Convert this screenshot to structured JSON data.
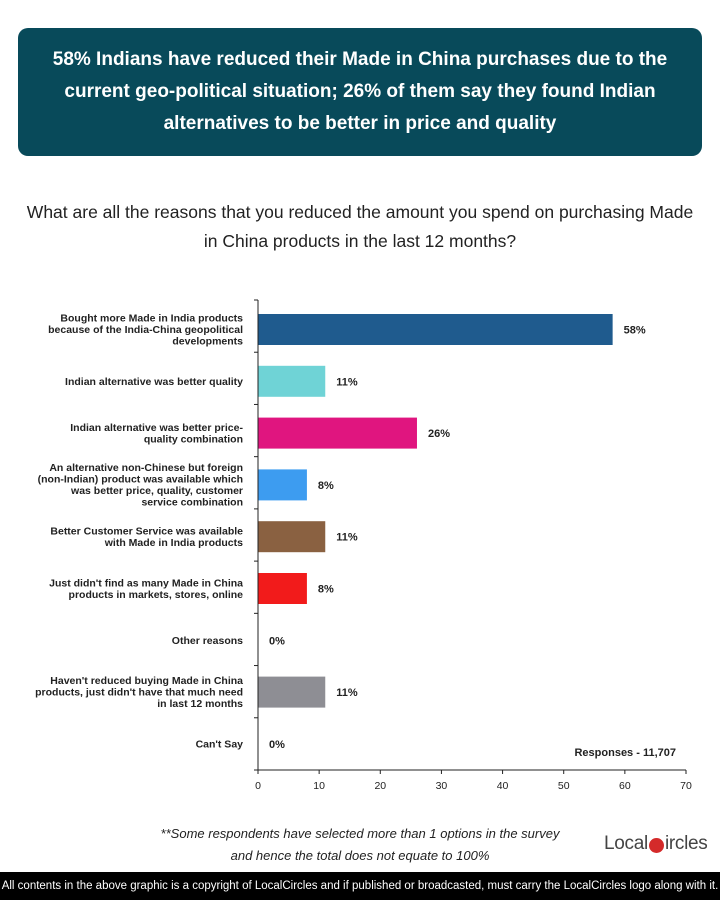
{
  "banner": {
    "headline": "58% Indians have reduced their Made in China purchases due to the current geo-political situation; 26% of them say they found Indian alternatives to be better in price and quality"
  },
  "question": "What are all the reasons that you reduced the amount you spend on purchasing Made in China products in the last 12 months?",
  "chart_data": {
    "type": "bar",
    "orientation": "horizontal",
    "categories": [
      "Bought more Made in India products because of the India-China geopolitical developments",
      "Indian alternative was better quality",
      "Indian alternative was better price-quality combination",
      "An alternative non-Chinese but foreign (non-Indian) product was available which was better price, quality, customer service combination",
      "Better Customer Service was available with Made in India products",
      "Just didn't find as many Made in China products in markets, stores, online",
      "Other reasons",
      "Haven't reduced buying Made in China products, just didn't have that much need in last 12 months",
      "Can't Say"
    ],
    "category_lines": [
      [
        "Bought more Made in India products",
        "because of the India-China geopolitical",
        "developments"
      ],
      [
        "Indian alternative was better quality"
      ],
      [
        "Indian alternative was better price-",
        "quality combination"
      ],
      [
        "An alternative non-Chinese but foreign",
        "(non-Indian) product was available which",
        "was better price, quality, customer",
        "service combination"
      ],
      [
        "Better Customer Service was available",
        "with Made in India products"
      ],
      [
        "Just didn't find as many Made in China",
        "products in markets, stores, online"
      ],
      [
        "Other reasons"
      ],
      [
        "Haven't reduced buying Made in China",
        "products, just didn't have that much need",
        "in last 12 months"
      ],
      [
        "Can't Say"
      ]
    ],
    "values": [
      58,
      11,
      26,
      8,
      11,
      8,
      0,
      11,
      0
    ],
    "value_labels": [
      "58%",
      "11%",
      "26%",
      "8%",
      "11%",
      "8%",
      "0%",
      "11%",
      "0%"
    ],
    "colors": [
      "#1f5b8e",
      "#6fd3d6",
      "#e0157f",
      "#3d9cf0",
      "#8a6141",
      "#f21b1b",
      "#aaaaaa",
      "#8e8e94",
      "#aaaaaa"
    ],
    "xlim": [
      0,
      70
    ],
    "xticks": [
      "0",
      "10",
      "20",
      "30",
      "40",
      "50",
      "60",
      "70"
    ],
    "xtick_values": [
      0,
      10,
      20,
      30,
      40,
      50,
      60,
      70
    ],
    "annotation": "Responses - 11,707",
    "grid": false
  },
  "footnote": {
    "line1": "**Some respondents have selected more than 1 options in the survey",
    "line2": "and hence the total does not equate to 100%"
  },
  "logo": {
    "part1": "Local",
    "part2": "ircles"
  },
  "copyright": "All contents in the above graphic is a copyright of LocalCircles and if published or broadcasted, must carry the LocalCircles logo along with it."
}
